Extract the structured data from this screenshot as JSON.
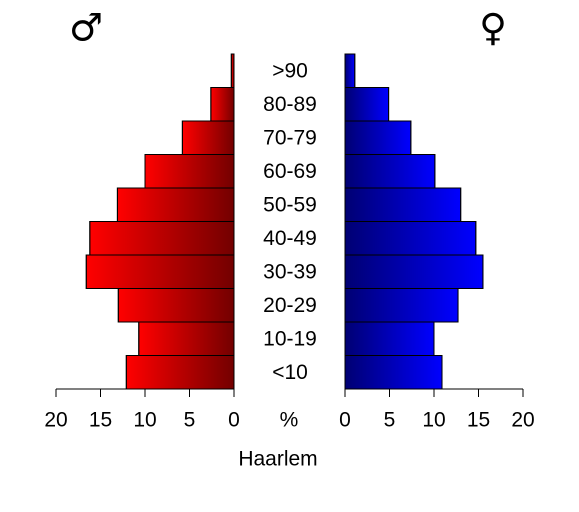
{
  "chart_data": {
    "type": "pyramid",
    "caption": "Haarlem",
    "xlabel": "%",
    "categories": [
      "<10",
      "10-19",
      "20-29",
      "30-39",
      "40-49",
      "50-59",
      "60-69",
      "70-79",
      "80-89",
      ">90"
    ],
    "series": [
      {
        "name": "♂",
        "color": "#ff0000",
        "values": [
          12.1,
          10.7,
          13.0,
          16.6,
          16.2,
          13.1,
          10.0,
          5.8,
          2.6,
          0.3
        ]
      },
      {
        "name": "♀",
        "color": "#0000ff",
        "values": [
          10.9,
          10.0,
          12.7,
          15.5,
          14.7,
          13.0,
          10.1,
          7.4,
          4.9,
          1.1
        ]
      }
    ],
    "xlim": [
      0,
      20
    ],
    "xticks": [
      0,
      5,
      10,
      15,
      20
    ]
  }
}
